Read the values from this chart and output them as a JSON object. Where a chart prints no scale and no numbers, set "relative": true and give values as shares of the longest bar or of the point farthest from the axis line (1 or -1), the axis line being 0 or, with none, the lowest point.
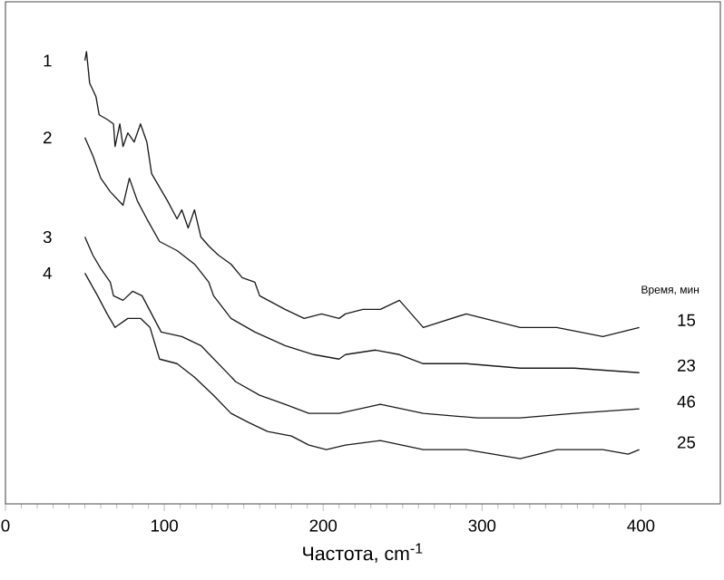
{
  "chart_data": {
    "type": "line",
    "relative": true,
    "xlabel": "Частота, cm$^{-1}$",
    "xlim": [
      0,
      450
    ],
    "xticks": [
      0,
      100,
      200,
      300,
      400
    ],
    "grid": false,
    "marker": "none",
    "line_style": "solid",
    "series": [
      {
        "name": "1",
        "color": "#1a1a1a",
        "x": [
          50,
          51,
          53,
          57,
          59,
          64,
          68,
          69,
          72,
          74,
          77,
          81,
          85,
          89,
          92,
          97,
          102,
          108,
          111,
          115,
          119,
          123,
          128,
          134,
          142,
          149,
          157,
          160,
          176,
          188,
          199,
          210,
          214,
          225,
          236,
          248,
          263,
          290,
          324,
          347,
          376,
          399
        ],
        "values": [
          0.98,
          1.0,
          0.93,
          0.9,
          0.86,
          0.85,
          0.84,
          0.79,
          0.84,
          0.79,
          0.82,
          0.8,
          0.84,
          0.8,
          0.73,
          0.7,
          0.67,
          0.63,
          0.65,
          0.61,
          0.65,
          0.59,
          0.57,
          0.55,
          0.53,
          0.5,
          0.49,
          0.46,
          0.43,
          0.41,
          0.42,
          0.41,
          0.42,
          0.43,
          0.43,
          0.45,
          0.39,
          0.42,
          0.39,
          0.39,
          0.37,
          0.39
        ]
      },
      {
        "name": "2",
        "color": "#1a1a1a",
        "x": [
          50,
          55,
          60,
          66,
          74,
          78,
          83,
          89,
          97,
          108,
          119,
          128,
          131,
          142,
          157,
          176,
          194,
          210,
          214,
          233,
          248,
          263,
          290,
          324,
          358,
          399
        ],
        "values": [
          0.81,
          0.77,
          0.72,
          0.69,
          0.66,
          0.72,
          0.67,
          0.63,
          0.58,
          0.56,
          0.53,
          0.49,
          0.46,
          0.41,
          0.38,
          0.35,
          0.33,
          0.32,
          0.33,
          0.34,
          0.33,
          0.31,
          0.31,
          0.3,
          0.3,
          0.29
        ]
      },
      {
        "name": "3",
        "color": "#1a1a1a",
        "x": [
          50,
          55,
          60,
          66,
          68,
          74,
          80,
          86,
          92,
          98,
          111,
          123,
          134,
          145,
          160,
          176,
          191,
          210,
          236,
          263,
          297,
          324,
          358,
          399
        ],
        "values": [
          0.59,
          0.55,
          0.52,
          0.49,
          0.46,
          0.45,
          0.47,
          0.46,
          0.42,
          0.38,
          0.37,
          0.35,
          0.31,
          0.27,
          0.24,
          0.22,
          0.2,
          0.2,
          0.22,
          0.2,
          0.19,
          0.19,
          0.2,
          0.21
        ]
      },
      {
        "name": "4",
        "color": "#1a1a1a",
        "x": [
          50,
          58,
          64,
          69,
          77,
          85,
          91,
          97,
          108,
          119,
          131,
          142,
          153,
          165,
          180,
          191,
          202,
          214,
          236,
          263,
          290,
          324,
          347,
          376,
          392,
          399
        ],
        "values": [
          0.51,
          0.46,
          0.42,
          0.39,
          0.41,
          0.41,
          0.39,
          0.32,
          0.31,
          0.28,
          0.24,
          0.2,
          0.18,
          0.16,
          0.15,
          0.13,
          0.12,
          0.13,
          0.14,
          0.12,
          0.12,
          0.1,
          0.12,
          0.12,
          0.11,
          0.12
        ]
      }
    ],
    "annotations": [
      "Время, мин",
      "15",
      "23",
      "46",
      "25"
    ]
  }
}
